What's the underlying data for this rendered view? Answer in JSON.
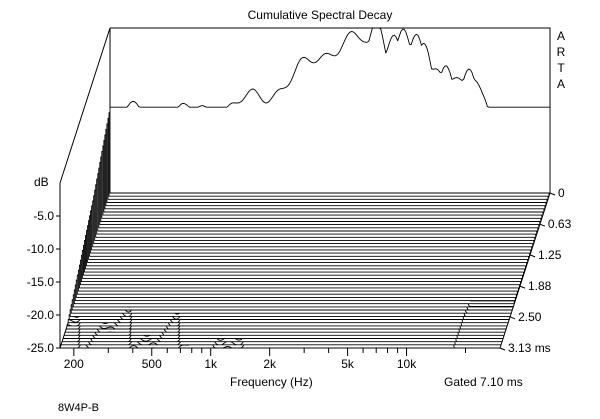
{
  "chart_data": {
    "type": "waterfall",
    "title": "Cumulative Spectral Decay",
    "brand_letters": [
      "A",
      "R",
      "T",
      "A"
    ],
    "xlabel": "Frequency (Hz)",
    "ylabel": "dB",
    "zlabel_note": "Gated 7.10 ms",
    "footer": "8W4P-B",
    "x_scale": "log",
    "xlim": [
      170,
      30000
    ],
    "x_ticks": [
      {
        "v": 200,
        "label": "200"
      },
      {
        "v": 500,
        "label": "500"
      },
      {
        "v": 1000,
        "label": "1k"
      },
      {
        "v": 2000,
        "label": "2k"
      },
      {
        "v": 5000,
        "label": "5k"
      },
      {
        "v": 10000,
        "label": "10k"
      }
    ],
    "x_minor_ticks": [
      300,
      400,
      600,
      700,
      800,
      900,
      3000,
      4000,
      6000,
      7000,
      8000,
      9000,
      20000
    ],
    "ylim": [
      -25,
      0
    ],
    "y_ticks": [
      {
        "v": -5,
        "label": "-5.0"
      },
      {
        "v": -10,
        "label": "-10.0"
      },
      {
        "v": -15,
        "label": "-15.0"
      },
      {
        "v": -20,
        "label": "-20.0"
      },
      {
        "v": -25,
        "label": "-25.0"
      }
    ],
    "time_ticks": [
      {
        "v": 0,
        "label": "0"
      },
      {
        "v": 0.63,
        "label": "0.63"
      },
      {
        "v": 1.25,
        "label": "1.25"
      },
      {
        "v": 1.88,
        "label": "1.88"
      },
      {
        "v": 2.5,
        "label": "2.50"
      },
      {
        "v": 3.13,
        "label": "3.13 ms"
      }
    ],
    "time_range_ms": [
      0,
      3.13
    ],
    "slice_count": 50,
    "grid": false
  }
}
